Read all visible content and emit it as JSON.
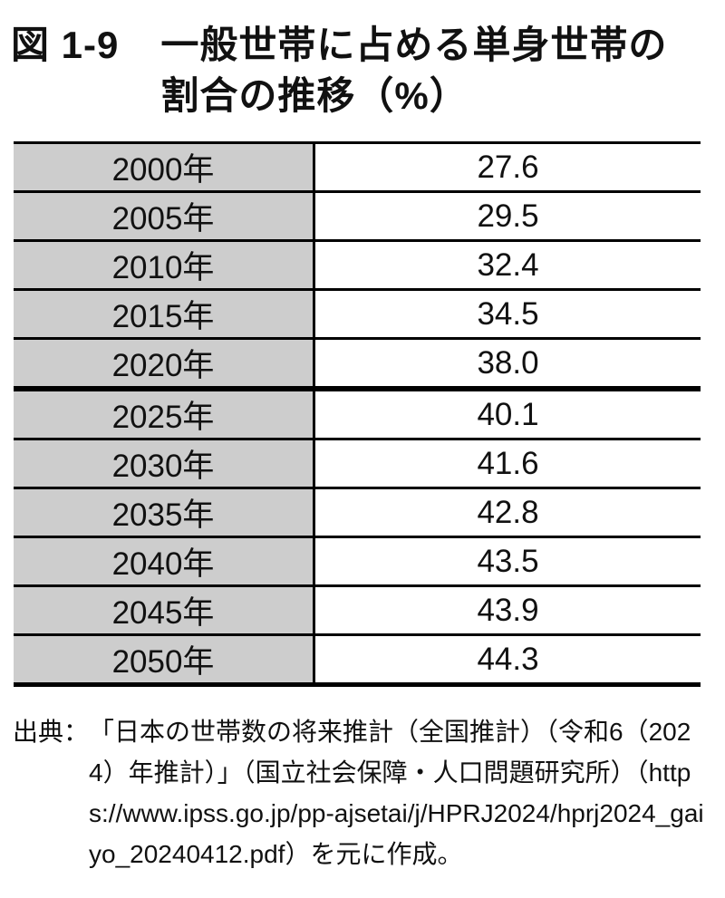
{
  "title": {
    "number": "図 1-9",
    "line1": "一般世帯に占める単身世帯の",
    "line2": "割合の推移（%）"
  },
  "chart_data": {
    "type": "table",
    "figure_number": "図 1-9",
    "title": "一般世帯に占める単身世帯の割合の推移（%）",
    "categories": [
      "2000年",
      "2005年",
      "2010年",
      "2015年",
      "2020年",
      "2025年",
      "2030年",
      "2035年",
      "2040年",
      "2045年",
      "2050年"
    ],
    "values": [
      27.6,
      29.5,
      32.4,
      34.5,
      38.0,
      40.1,
      41.6,
      42.8,
      43.5,
      43.9,
      44.3
    ],
    "rows": [
      {
        "year": "2000年",
        "value": "27.6"
      },
      {
        "year": "2005年",
        "value": "29.5"
      },
      {
        "year": "2010年",
        "value": "32.4"
      },
      {
        "year": "2015年",
        "value": "34.5"
      },
      {
        "year": "2020年",
        "value": "38.0"
      },
      {
        "year": "2025年",
        "value": "40.1"
      },
      {
        "year": "2030年",
        "value": "41.6"
      },
      {
        "year": "2035年",
        "value": "42.8"
      },
      {
        "year": "2040年",
        "value": "43.5"
      },
      {
        "year": "2045年",
        "value": "43.9"
      },
      {
        "year": "2050年",
        "value": "44.3"
      }
    ],
    "thick_divider_after_index": 4,
    "layout": {
      "year_column_background": "#cdcdcd",
      "value_column_background": "#ffffff",
      "border_color": "#000000"
    }
  },
  "source": {
    "label": "出典：",
    "text": "「日本の世帯数の将来推計（全国推計）（令和6（2024）年推計）」（国立社会保障・人口問題研究所）（https://www.ipss.go.jp/pp-ajsetai/j/HPRJ2024/hprj2024_gaiyo_20240412.pdf）を元に作成。"
  }
}
